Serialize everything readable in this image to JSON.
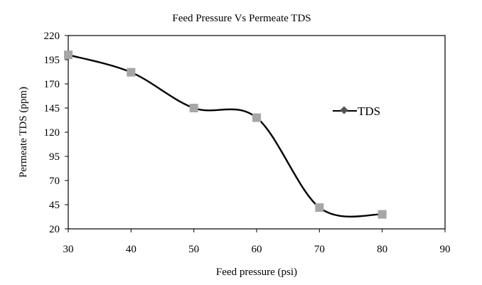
{
  "chart_data": {
    "type": "line",
    "title": "Feed Pressure Vs Permeate TDS",
    "xlabel": "Feed pressure (psi)",
    "ylabel": "Permeate TDS (ppm)",
    "xlim": [
      30,
      90
    ],
    "ylim": [
      20,
      220
    ],
    "x_ticks": [
      30,
      40,
      50,
      60,
      70,
      80,
      90
    ],
    "y_ticks": [
      20,
      45,
      70,
      95,
      120,
      145,
      170,
      195,
      220
    ],
    "grid": false,
    "smoothed": true,
    "legend_position": "right",
    "series": [
      {
        "name": "TDS",
        "color": "#000000",
        "marker_color": "#a6a6a6",
        "x": [
          30,
          40,
          50,
          60,
          70,
          80
        ],
        "y": [
          200,
          182,
          145,
          135,
          42,
          35
        ]
      }
    ]
  }
}
